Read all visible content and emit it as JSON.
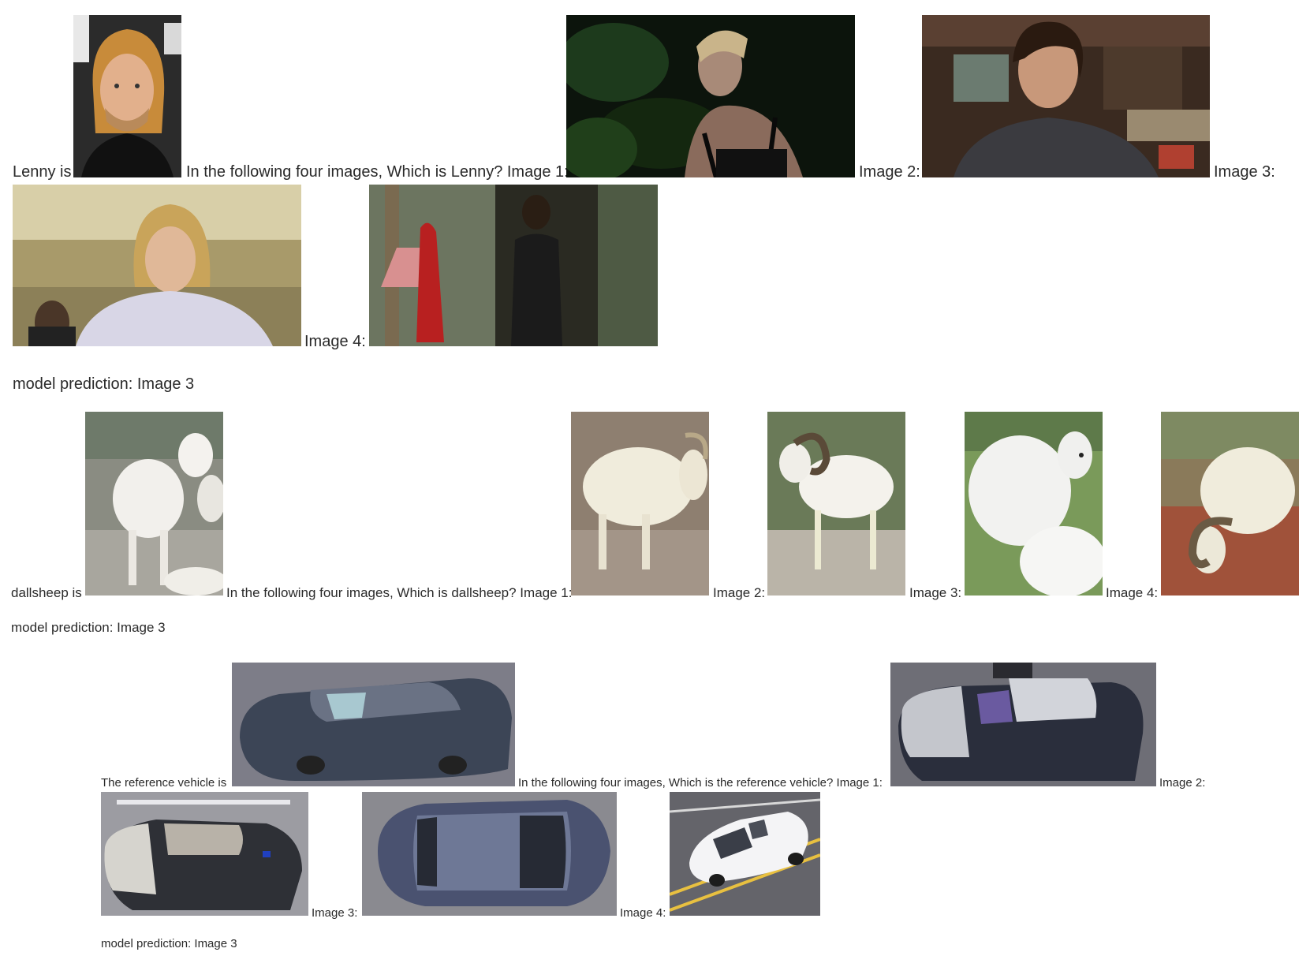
{
  "example1": {
    "intro": "Lenny is",
    "question": "In the following four images, Which is Lenny? Image 1:",
    "image2_label": "Image 2:",
    "image3_label": "Image 3:",
    "image4_label": "Image 4:",
    "prediction": "model prediction: Image 3"
  },
  "example2": {
    "intro": "dallsheep is",
    "question": "In the following four images, Which is dallsheep? Image 1:",
    "image2_label": "Image 2:",
    "image3_label": "Image 3:",
    "image4_label": "Image 4:",
    "prediction": "model prediction: Image 3"
  },
  "example3": {
    "intro": "The reference vehicle is",
    "question": "In the following four images, Which is the reference vehicle? Image 1:",
    "image2_label": "Image 2:",
    "image3_label": "Image 3:",
    "image4_label": "Image 4:",
    "prediction": "model prediction: Image 3"
  }
}
